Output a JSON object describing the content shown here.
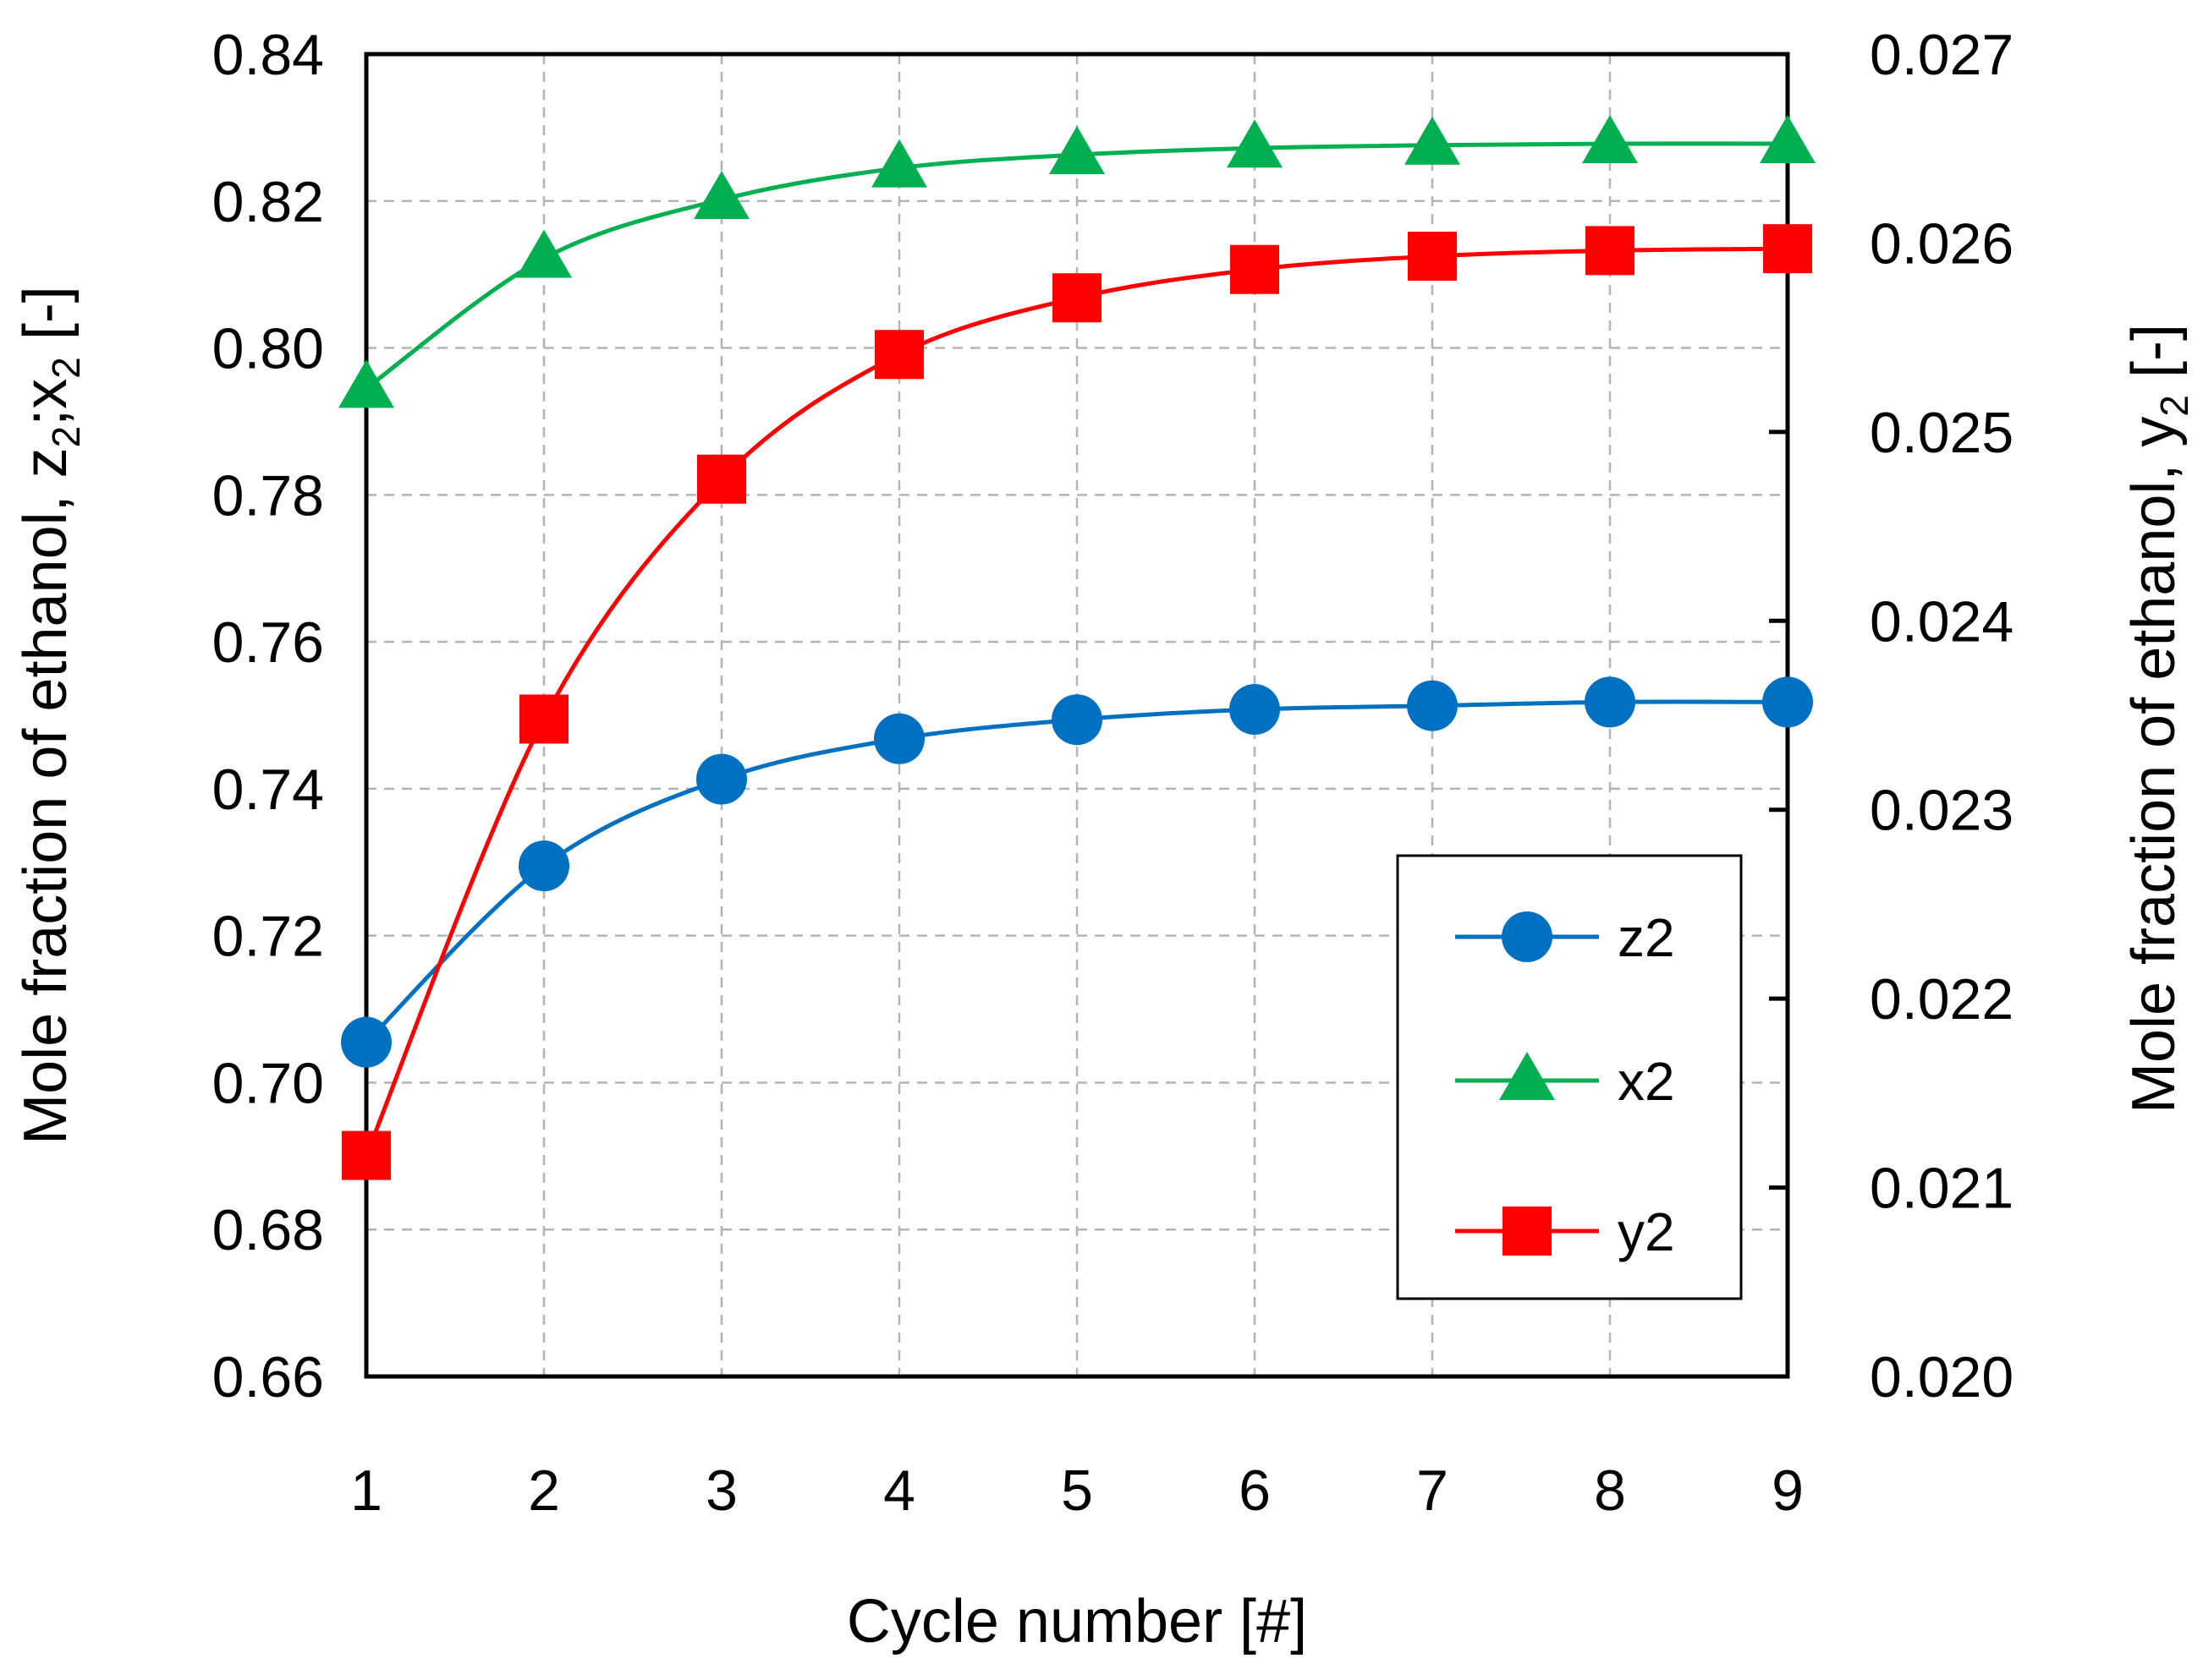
{
  "chart_data": {
    "type": "line",
    "xlabel": "Cycle number [#]",
    "ylabel_left": {
      "main": "Mole fraction of ethanol,  z",
      "sub1": "2",
      "sep": ";x",
      "sub2": "2",
      "unit": " [-]"
    },
    "ylabel_right": {
      "main": "Mole fraction of ethanol,  y",
      "sub": "2",
      "unit": " [-]"
    },
    "x": [
      1,
      2,
      3,
      4,
      5,
      6,
      7,
      8,
      9
    ],
    "xlim": [
      1,
      9
    ],
    "ylim_left": [
      0.66,
      0.84
    ],
    "ylim_right": [
      0.02,
      0.027
    ],
    "x_ticks": [
      "1",
      "2",
      "3",
      "4",
      "5",
      "6",
      "7",
      "8",
      "9"
    ],
    "y_ticks_left": [
      "0.66",
      "0.68",
      "0.70",
      "0.72",
      "0.74",
      "0.76",
      "0.78",
      "0.80",
      "0.82",
      "0.84"
    ],
    "y_ticks_right": [
      "0.020",
      "0.021",
      "0.022",
      "0.023",
      "0.024",
      "0.025",
      "0.026",
      "0.027"
    ],
    "grid": true,
    "legend_position": "lower-right",
    "series": [
      {
        "name": "z2",
        "axis": "left",
        "marker": "circle",
        "color": "#0070C0",
        "values": [
          0.7055,
          0.7295,
          0.7413,
          0.7468,
          0.7494,
          0.7508,
          0.7513,
          0.7518,
          0.7518
        ]
      },
      {
        "name": "x2",
        "axis": "left",
        "marker": "triangle",
        "color": "#00B050",
        "values": [
          0.7945,
          0.8122,
          0.8202,
          0.8245,
          0.8263,
          0.8272,
          0.8276,
          0.8278,
          0.8278
        ]
      },
      {
        "name": "y2",
        "axis": "right",
        "marker": "square",
        "color": "#FF0000",
        "values": [
          0.02117,
          0.02348,
          0.02475,
          0.02541,
          0.02571,
          0.02586,
          0.02593,
          0.02596,
          0.02597
        ]
      }
    ]
  }
}
